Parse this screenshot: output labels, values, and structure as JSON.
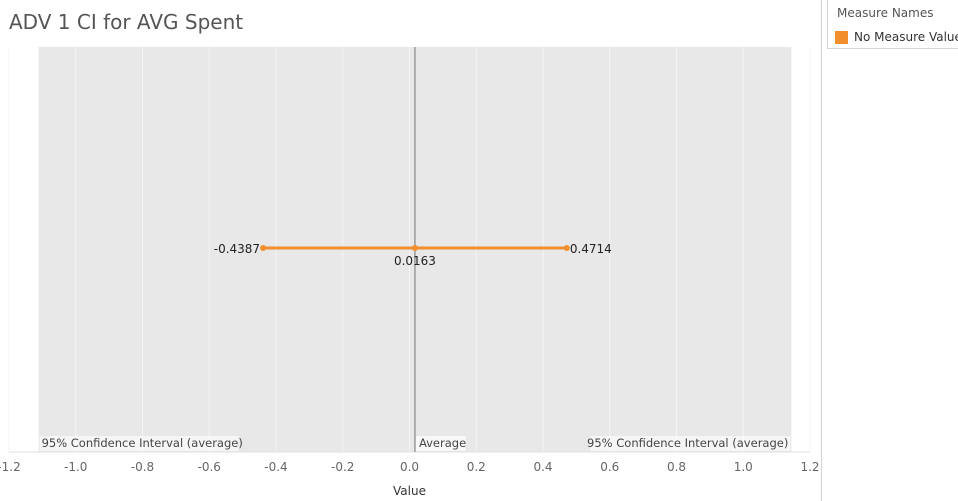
{
  "title": "ADV 1 CI for AVG Spent",
  "legend": {
    "title": "Measure Names",
    "items": [
      {
        "label": "No Measure Value",
        "color": "#f28e2b"
      }
    ]
  },
  "colors": {
    "band_fill": "#e8e8e8",
    "line": "#f28e2b",
    "reference_line": "#999999",
    "grid": "#f4f4f4"
  },
  "chart_data": {
    "type": "line",
    "xlabel": "Value",
    "ylabel": "",
    "xlim": [
      -1.2,
      1.2
    ],
    "x_ticks": [
      -1.2,
      -1.0,
      -0.8,
      -0.6,
      -0.4,
      -0.2,
      0.0,
      0.2,
      0.4,
      0.6,
      0.8,
      1.0,
      1.2
    ],
    "x_tick_labels": [
      "-1.2",
      "-1.0",
      "-0.8",
      "-0.6",
      "-0.4",
      "-0.2",
      "0.0",
      "0.2",
      "0.4",
      "0.6",
      "0.8",
      "1.0",
      "1.2"
    ],
    "band": {
      "from": -1.1114,
      "to": 1.1441
    },
    "reference_lines": [
      {
        "label": "Average",
        "x": 0.0163
      }
    ],
    "band_labels": [
      {
        "label": "95% Confidence Interval (average)",
        "position": "left"
      },
      {
        "label": "95% Confidence Interval (average)",
        "position": "right"
      }
    ],
    "series": [
      {
        "name": "No Measure Value",
        "points": [
          {
            "x": -0.4387,
            "label": "-0.4387"
          },
          {
            "x": 0.0163,
            "label": "0.0163"
          },
          {
            "x": 0.4714,
            "label": "0.4714"
          }
        ]
      }
    ]
  }
}
